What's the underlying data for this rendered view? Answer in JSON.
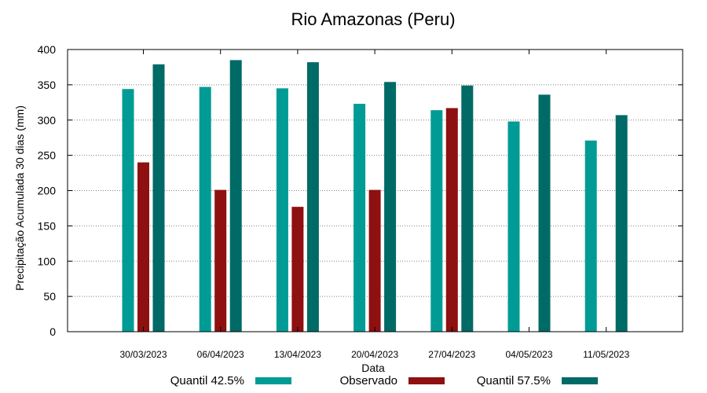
{
  "chart_data": {
    "type": "bar",
    "title": "Rio Amazonas (Peru)",
    "xlabel": "Data",
    "ylabel": "Precipitação Acumulada 30 dias (mm)",
    "ylim": [
      0,
      400
    ],
    "yticks": [
      0,
      50,
      100,
      150,
      200,
      250,
      300,
      350,
      400
    ],
    "grid": true,
    "legend_position": "bottom",
    "categories": [
      "30/03/2023",
      "06/04/2023",
      "13/04/2023",
      "20/04/2023",
      "27/04/2023",
      "04/05/2023",
      "11/05/2023"
    ],
    "series": [
      {
        "name": "Quantil 42.5%",
        "color": "#009B95",
        "values": [
          344,
          347,
          345,
          323,
          314,
          298,
          271
        ]
      },
      {
        "name": "Observado",
        "color": "#8E1010",
        "values": [
          240,
          201,
          177,
          201,
          317,
          null,
          null
        ]
      },
      {
        "name": "Quantil 57.5%",
        "color": "#006A66",
        "values": [
          379,
          385,
          382,
          354,
          349,
          336,
          307
        ]
      }
    ]
  }
}
